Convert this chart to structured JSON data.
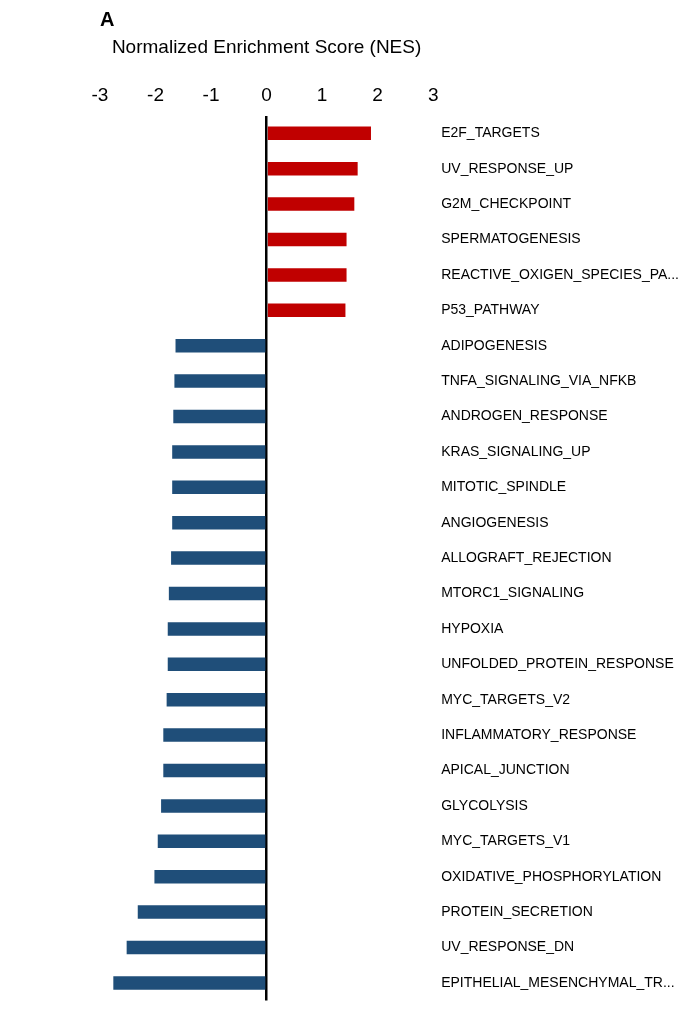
{
  "chart_data": {
    "type": "bar",
    "orientation": "horizontal",
    "title": "A",
    "xlabel": "Normalized Enrichment Score (NES)",
    "categories": [
      "E2F_TARGETS",
      "UV_RESPONSE_UP",
      "G2M_CHECKPOINT",
      "SPERMATOGENESIS",
      "REACTIVE_OXIGEN_SPECIES_PA...",
      "P53_PATHWAY",
      "ADIPOGENESIS",
      "TNFA_SIGNALING_VIA_NFKB",
      "ANDROGEN_RESPONSE",
      "KRAS_SIGNALING_UP",
      "MITOTIC_SPINDLE",
      "ANGIOGENESIS",
      "ALLOGRAFT_REJECTION",
      "MTORC1_SIGNALING",
      "HYPOXIA",
      "UNFOLDED_PROTEIN_RESPONSE",
      "MYC_TARGETS_V2",
      "INFLAMMATORY_RESPONSE",
      "APICAL_JUNCTION",
      "GLYCOLYSIS",
      "MYC_TARGETS_V1",
      "OXIDATIVE_PHOSPHORYLATION",
      "PROTEIN_SECRETION",
      "UV_RESPONSE_DN",
      "EPITHELIAL_MESENCHYMAL_TR..."
    ],
    "values": [
      1.88,
      1.64,
      1.58,
      1.44,
      1.44,
      1.42,
      -1.64,
      -1.66,
      -1.68,
      -1.7,
      -1.7,
      -1.7,
      -1.72,
      -1.76,
      -1.78,
      -1.78,
      -1.8,
      -1.86,
      -1.86,
      -1.9,
      -1.96,
      -2.02,
      -2.32,
      -2.52,
      -2.76
    ],
    "colors": [
      "#c00000",
      "#c00000",
      "#c00000",
      "#c00000",
      "#c00000",
      "#c00000",
      "#1f4e79",
      "#1f4e79",
      "#1f4e79",
      "#1f4e79",
      "#1f4e79",
      "#1f4e79",
      "#1f4e79",
      "#1f4e79",
      "#1f4e79",
      "#1f4e79",
      "#1f4e79",
      "#1f4e79",
      "#1f4e79",
      "#1f4e79",
      "#1f4e79",
      "#1f4e79",
      "#1f4e79",
      "#1f4e79",
      "#1f4e79"
    ],
    "xlim": [
      -3,
      3
    ],
    "xticks": [
      -3,
      -2,
      -1,
      0,
      1,
      2,
      3
    ]
  }
}
